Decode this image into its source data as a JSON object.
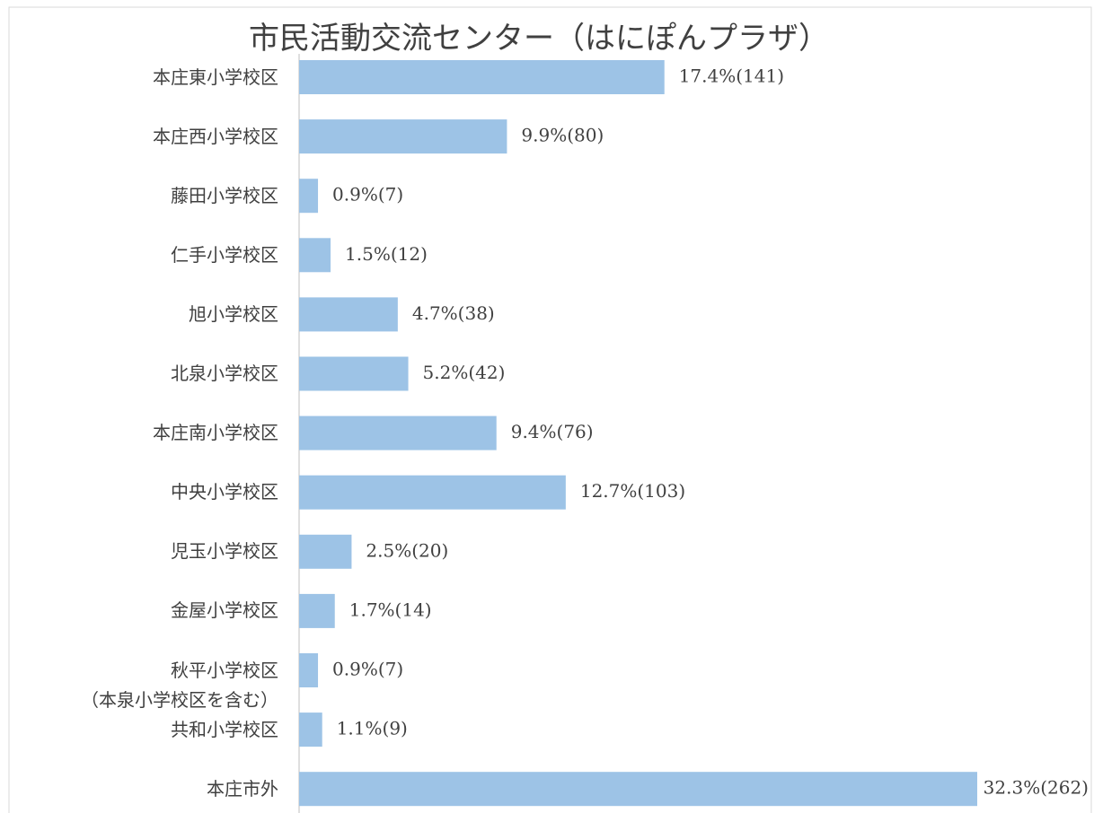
{
  "chart_data": {
    "type": "bar",
    "orientation": "horizontal",
    "title": "市民活動交流センター（はにぽんプラザ）",
    "categories": [
      "本庄東小学校区",
      "本庄西小学校区",
      "藤田小学校区",
      "仁手小学校区",
      "旭小学校区",
      "北泉小学校区",
      "本庄南小学校区",
      "中央小学校区",
      "児玉小学校区",
      "金屋小学校区",
      "秋平小学校区\n（本泉小学校区を含む）",
      "共和小学校区",
      "本庄市外"
    ],
    "values": [
      17.4,
      9.9,
      0.9,
      1.5,
      4.7,
      5.2,
      9.4,
      12.7,
      2.5,
      1.7,
      0.9,
      1.1,
      32.3
    ],
    "value_labels": [
      "17.4%(141)",
      "9.9%(80)",
      "0.9%(7)",
      "1.5%(12)",
      "4.7%(38)",
      "5.2%(42)",
      "9.4%(76)",
      "12.7%(103)",
      "2.5%(20)",
      "1.7%(14)",
      "0.9%(7)",
      "1.1%(9)",
      "32.3%(262)"
    ],
    "color": "#9dc3e6"
  }
}
